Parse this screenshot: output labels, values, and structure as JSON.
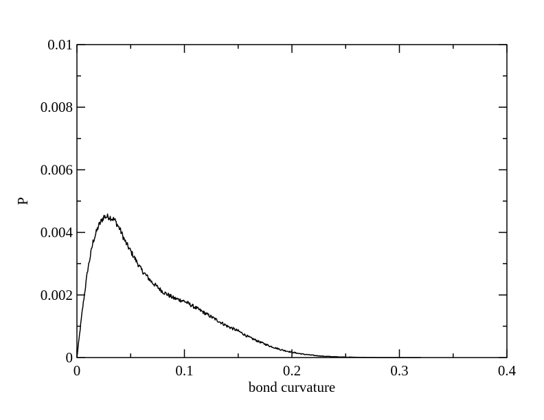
{
  "chart_data": {
    "type": "line",
    "title": "",
    "xlabel": "bond curvature",
    "ylabel": "P",
    "xlim": [
      0,
      0.4
    ],
    "ylim": [
      0,
      0.01
    ],
    "x_ticks": [
      0,
      0.1,
      0.2,
      0.3,
      0.4
    ],
    "x_tick_labels": [
      "0",
      "0.1",
      "0.2",
      "0.3",
      "0.4"
    ],
    "y_ticks": [
      0,
      0.002,
      0.004,
      0.006,
      0.008,
      0.01
    ],
    "y_tick_labels": [
      "0",
      "0.002",
      "0.004",
      "0.006",
      "0.008",
      "0.01"
    ],
    "grid": false,
    "legend": "none",
    "line_color": "#000000",
    "series": [
      {
        "x": [
          0,
          0.005,
          0.01,
          0.015,
          0.02,
          0.025,
          0.03,
          0.035,
          0.04,
          0.045,
          0.05,
          0.06,
          0.07,
          0.08,
          0.09,
          0.1,
          0.11,
          0.12,
          0.13,
          0.14,
          0.15,
          0.16,
          0.17,
          0.18,
          0.19,
          0.2,
          0.21,
          0.22,
          0.23,
          0.24,
          0.25,
          0.26,
          0.27,
          0.28,
          0.29,
          0.3,
          0.31,
          0.32
        ],
        "values": [
          0,
          0.0015,
          0.0028,
          0.0037,
          0.0042,
          0.0045,
          0.0045,
          0.0044,
          0.0041,
          0.0037,
          0.0034,
          0.0028,
          0.0024,
          0.0021,
          0.0019,
          0.0018,
          0.0016,
          0.0014,
          0.0012,
          0.001,
          0.00085,
          0.00065,
          0.0005,
          0.00036,
          0.00025,
          0.00017,
          0.00011,
          7e-05,
          4e-05,
          2.5e-05,
          1.5e-05,
          8e-06,
          4e-06,
          2e-06,
          1e-06,
          5e-07,
          2e-07,
          0
        ]
      }
    ]
  }
}
